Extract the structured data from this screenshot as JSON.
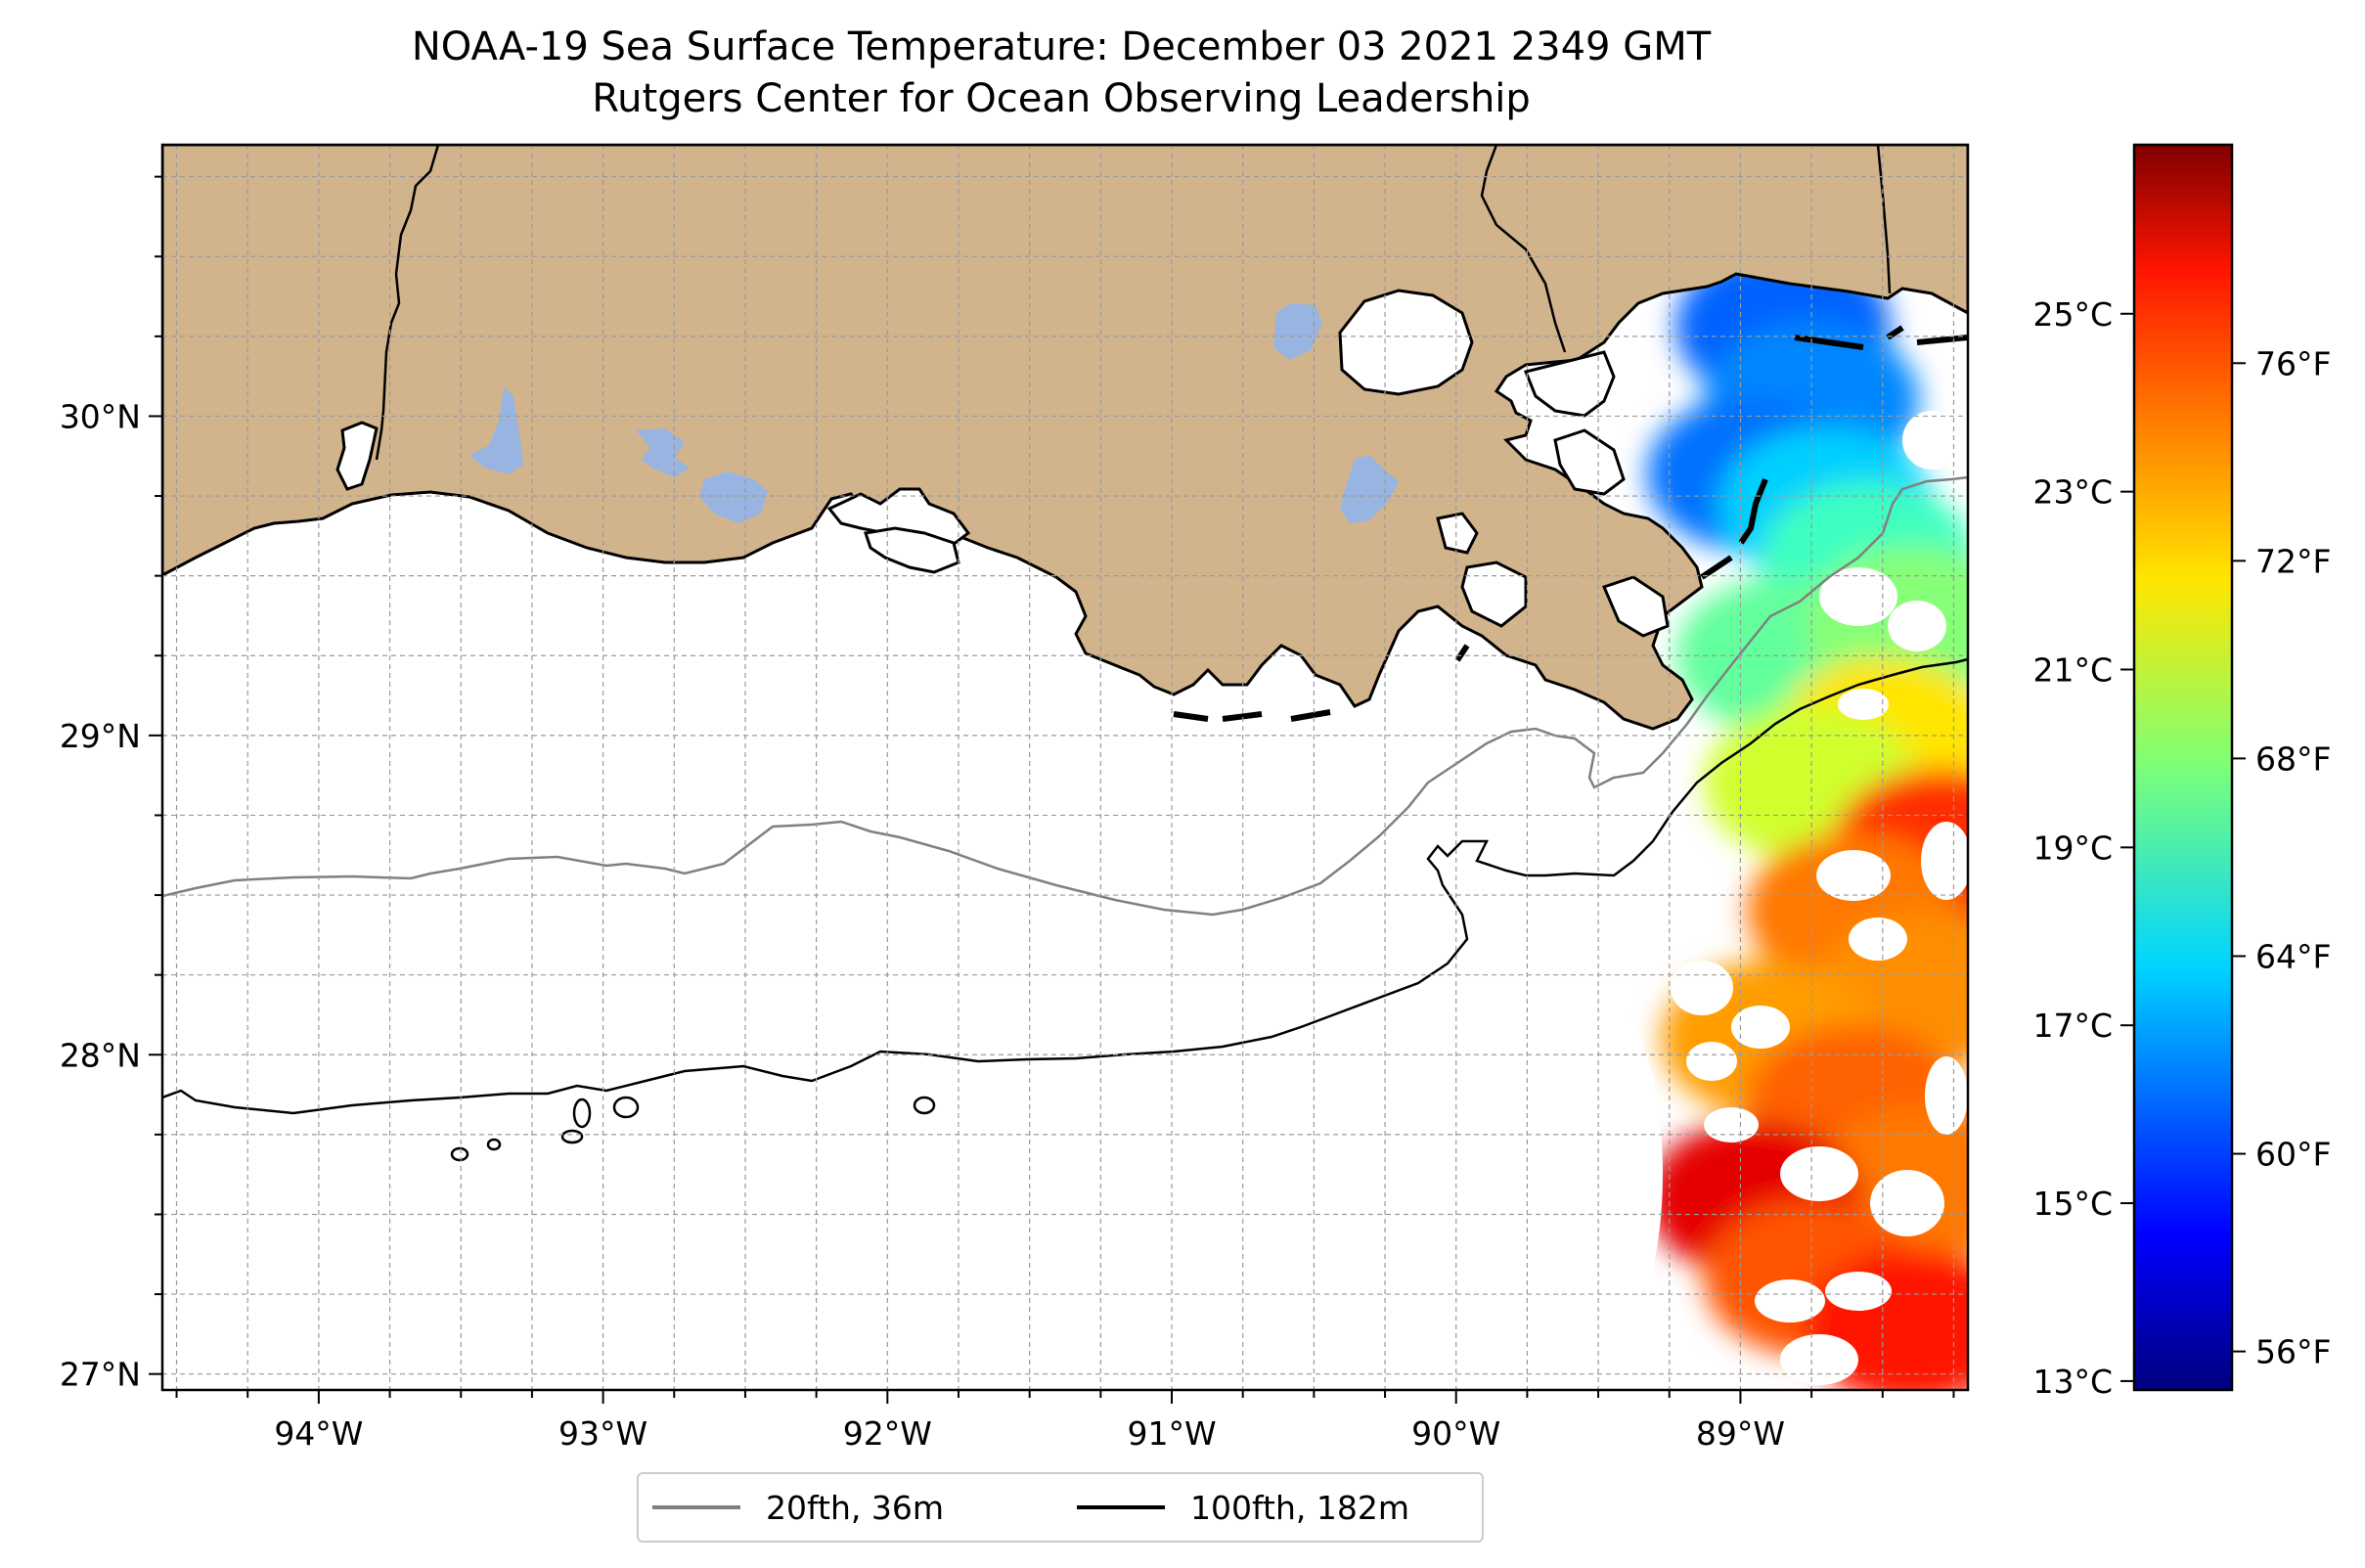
{
  "header": {
    "title_line1": "NOAA-19 Sea Surface Temperature: December 03 2021 2349 GMT",
    "title_line2": "Rutgers Center for Ocean Observing Leadership"
  },
  "map": {
    "lon_range": [
      -94.55,
      -88.2
    ],
    "lat_range": [
      26.95,
      30.85
    ],
    "lon_ticks": [
      {
        "value": -94,
        "label": "94°W"
      },
      {
        "value": -93,
        "label": "93°W"
      },
      {
        "value": -92,
        "label": "92°W"
      },
      {
        "value": -91,
        "label": "91°W"
      },
      {
        "value": -90,
        "label": "90°W"
      },
      {
        "value": -89,
        "label": "89°W"
      }
    ],
    "lat_ticks": [
      {
        "value": 30,
        "label": "30°N"
      },
      {
        "value": 29,
        "label": "29°N"
      },
      {
        "value": 28,
        "label": "28°N"
      },
      {
        "value": 27,
        "label": "27°N"
      }
    ],
    "gridlines": true,
    "colors": {
      "land": "#d2b48c",
      "lakes": "#98b4e0",
      "ocean": "#ffffff",
      "isobath_20fth": "#808080",
      "isobath_100fth": "#000000"
    }
  },
  "legend": {
    "placement": "bottom-center",
    "items": [
      {
        "label": "20fth, 36m",
        "color": "#808080"
      },
      {
        "label": "100fth, 182m",
        "color": "#000000"
      }
    ]
  },
  "colorbar": {
    "colormap": "jet",
    "range_c": [
      12.9,
      26.9
    ],
    "celsius_ticks": [
      {
        "value": 13,
        "label": "13°C"
      },
      {
        "value": 15,
        "label": "15°C"
      },
      {
        "value": 17,
        "label": "17°C"
      },
      {
        "value": 19,
        "label": "19°C"
      },
      {
        "value": 21,
        "label": "21°C"
      },
      {
        "value": 23,
        "label": "23°C"
      },
      {
        "value": 25,
        "label": "25°C"
      }
    ],
    "fahrenheit_ticks": [
      {
        "value": 56,
        "label": "56°F"
      },
      {
        "value": 60,
        "label": "60°F"
      },
      {
        "value": 64,
        "label": "64°F"
      },
      {
        "value": 68,
        "label": "68°F"
      },
      {
        "value": 72,
        "label": "72°F"
      },
      {
        "value": 76,
        "label": "76°F"
      }
    ]
  },
  "chart_data": {
    "type": "heatmap",
    "description_units": "°C",
    "sst_patches": [
      {
        "lon": -88.85,
        "lat": 30.28,
        "temp_c": 16.0
      },
      {
        "lon": -88.75,
        "lat": 30.05,
        "temp_c": 16.5
      },
      {
        "lon": -88.95,
        "lat": 29.82,
        "temp_c": 16.2
      },
      {
        "lon": -88.7,
        "lat": 29.72,
        "temp_c": 17.5
      },
      {
        "lon": -88.55,
        "lat": 29.55,
        "temp_c": 19.0
      },
      {
        "lon": -88.85,
        "lat": 29.25,
        "temp_c": 19.5
      },
      {
        "lon": -88.4,
        "lat": 29.35,
        "temp_c": 20.0
      },
      {
        "lon": -88.5,
        "lat": 29.0,
        "temp_c": 22.0
      },
      {
        "lon": -88.75,
        "lat": 28.85,
        "temp_c": 21.0
      },
      {
        "lon": -88.3,
        "lat": 28.65,
        "temp_c": 24.5
      },
      {
        "lon": -88.6,
        "lat": 28.45,
        "temp_c": 23.5
      },
      {
        "lon": -88.35,
        "lat": 28.2,
        "temp_c": 23.2
      },
      {
        "lon": -88.9,
        "lat": 28.05,
        "temp_c": 23.0
      },
      {
        "lon": -88.6,
        "lat": 27.85,
        "temp_c": 23.8
      },
      {
        "lon": -88.35,
        "lat": 27.6,
        "temp_c": 23.5
      },
      {
        "lon": -88.95,
        "lat": 27.55,
        "temp_c": 25.5
      },
      {
        "lon": -88.75,
        "lat": 27.3,
        "temp_c": 24.0
      },
      {
        "lon": -88.4,
        "lat": 27.15,
        "temp_c": 24.8
      }
    ]
  }
}
